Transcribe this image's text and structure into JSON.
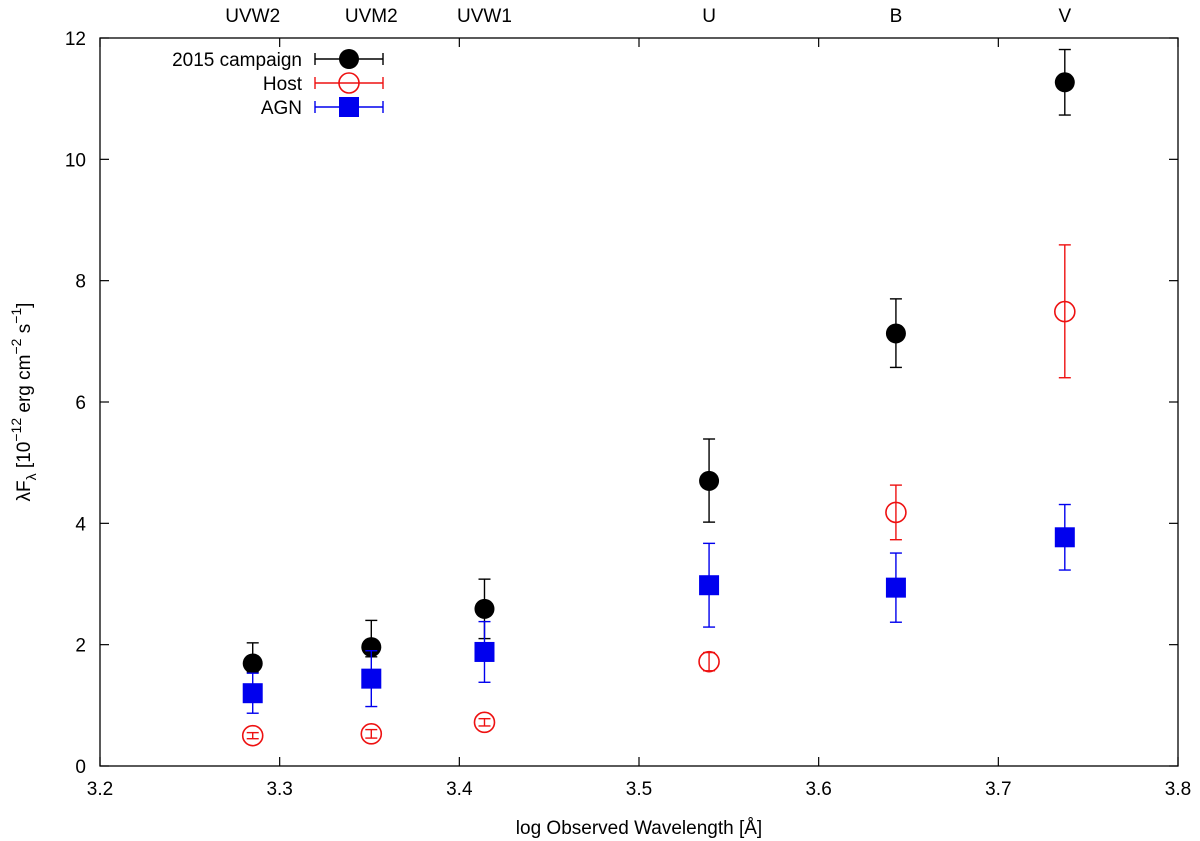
{
  "chart_data": {
    "type": "scatter",
    "xlabel": "log Observed Wavelength [Å]",
    "ylabel": {
      "base": "λF",
      "sub": "λ",
      "open": " [10",
      "exp1": "−12",
      "mid": " erg cm",
      "exp2": "−2",
      "tail": " s",
      "exp3": "−1",
      "close": "]"
    },
    "xlim": [
      3.2,
      3.8
    ],
    "ylim": [
      0,
      12
    ],
    "xticks": [
      "3.2",
      "3.3",
      "3.4",
      "3.5",
      "3.6",
      "3.7",
      "3.8"
    ],
    "yticks": [
      "0",
      "2",
      "4",
      "6",
      "8",
      "10",
      "12"
    ],
    "grid": false,
    "legend_position": "top-left",
    "top_labels": [
      {
        "x": 3.285,
        "label": "UVW2"
      },
      {
        "x": 3.351,
        "label": "UVM2"
      },
      {
        "x": 3.414,
        "label": "UVW1"
      },
      {
        "x": 3.539,
        "label": "U"
      },
      {
        "x": 3.643,
        "label": "B"
      },
      {
        "x": 3.737,
        "label": "V"
      }
    ],
    "series": [
      {
        "name": "2015 campaign",
        "color": "#000000",
        "marker": "filled-circle",
        "points": [
          {
            "x": 3.285,
            "y": 1.69,
            "err_lo": 1.55,
            "err_hi": 2.03
          },
          {
            "x": 3.351,
            "y": 1.96,
            "err_lo": 1.8,
            "err_hi": 2.4
          },
          {
            "x": 3.414,
            "y": 2.59,
            "err_lo": 2.1,
            "err_hi": 3.08
          },
          {
            "x": 3.539,
            "y": 4.7,
            "err_lo": 4.02,
            "err_hi": 5.39
          },
          {
            "x": 3.643,
            "y": 7.13,
            "err_lo": 6.57,
            "err_hi": 7.7
          },
          {
            "x": 3.737,
            "y": 11.27,
            "err_lo": 10.73,
            "err_hi": 11.81
          }
        ]
      },
      {
        "name": "Host",
        "color": "#ee1111",
        "marker": "open-circle",
        "points": [
          {
            "x": 3.285,
            "y": 0.5,
            "err_lo": 0.45,
            "err_hi": 0.55
          },
          {
            "x": 3.351,
            "y": 0.53,
            "err_lo": 0.46,
            "err_hi": 0.6
          },
          {
            "x": 3.414,
            "y": 0.72,
            "err_lo": 0.66,
            "err_hi": 0.78
          },
          {
            "x": 3.539,
            "y": 1.72,
            "err_lo": 1.57,
            "err_hi": 1.87
          },
          {
            "x": 3.643,
            "y": 4.18,
            "err_lo": 3.73,
            "err_hi": 4.63
          },
          {
            "x": 3.737,
            "y": 7.49,
            "err_lo": 6.4,
            "err_hi": 8.59
          }
        ]
      },
      {
        "name": "AGN",
        "color": "#0000ee",
        "marker": "filled-square",
        "points": [
          {
            "x": 3.285,
            "y": 1.2,
            "err_lo": 0.87,
            "err_hi": 1.53
          },
          {
            "x": 3.351,
            "y": 1.44,
            "err_lo": 0.98,
            "err_hi": 1.9
          },
          {
            "x": 3.414,
            "y": 1.88,
            "err_lo": 1.38,
            "err_hi": 2.38
          },
          {
            "x": 3.539,
            "y": 2.98,
            "err_lo": 2.29,
            "err_hi": 3.67
          },
          {
            "x": 3.643,
            "y": 2.94,
            "err_lo": 2.37,
            "err_hi": 3.51
          },
          {
            "x": 3.737,
            "y": 3.77,
            "err_lo": 3.23,
            "err_hi": 4.31
          }
        ]
      }
    ]
  }
}
